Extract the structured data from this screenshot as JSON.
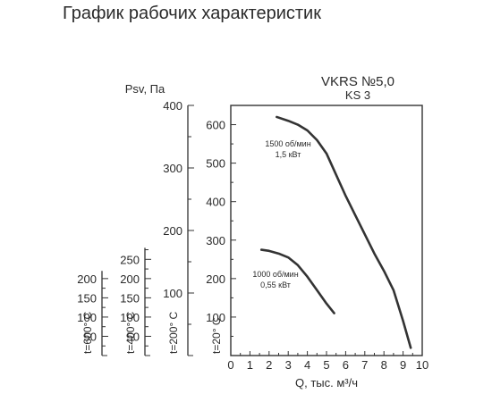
{
  "page": {
    "title": "График рабочих характеристик"
  },
  "chart_data": {
    "type": "line",
    "title": "VKRS №5,0",
    "subtitle": "KS 3",
    "xlabel": "Q, тыс. м³/ч",
    "ylabel": "Psv, Па",
    "xlim": [
      0,
      10
    ],
    "ylim": [
      0,
      650
    ],
    "x_ticks": [
      "0",
      "1",
      "2",
      "3",
      "4",
      "5",
      "6",
      "7",
      "8",
      "9",
      "10"
    ],
    "y_ticks": [
      "100",
      "200",
      "300",
      "400",
      "500",
      "600"
    ],
    "grid": false,
    "series": [
      {
        "name": "1500 об/мин 1,5 кВт",
        "label_line1": "1500 об/мин",
        "label_line2": "1,5 кВт",
        "x": [
          2.4,
          3.0,
          3.5,
          4.0,
          4.5,
          5.0,
          5.5,
          6.0,
          6.5,
          7.0,
          7.5,
          8.0,
          8.5,
          9.0,
          9.4
        ],
        "y": [
          620,
          610,
          600,
          585,
          560,
          525,
          470,
          415,
          365,
          315,
          265,
          220,
          170,
          90,
          20
        ]
      },
      {
        "name": "1000 об/мин 0,55 кВт",
        "label_line1": "1000 об/мин",
        "label_line2": "0,55 кВт",
        "x": [
          1.6,
          2.0,
          2.5,
          3.0,
          3.5,
          4.0,
          4.5,
          5.0,
          5.4
        ],
        "y": [
          275,
          272,
          265,
          255,
          235,
          205,
          170,
          135,
          110
        ]
      }
    ],
    "temperature_axes": [
      {
        "label": "t=600° C",
        "ticks": [
          "50",
          "100",
          "150",
          "200"
        ],
        "max": 220
      },
      {
        "label": "t=400° C",
        "ticks": [
          "50",
          "100",
          "150",
          "200",
          "250"
        ],
        "max": 280
      },
      {
        "label": "t=200° C",
        "ticks": [
          "100",
          "200",
          "300",
          "400"
        ],
        "max": 400
      },
      {
        "label": "t=20° C",
        "ticks": [],
        "max": 650
      }
    ],
    "line_color": "#333333"
  }
}
